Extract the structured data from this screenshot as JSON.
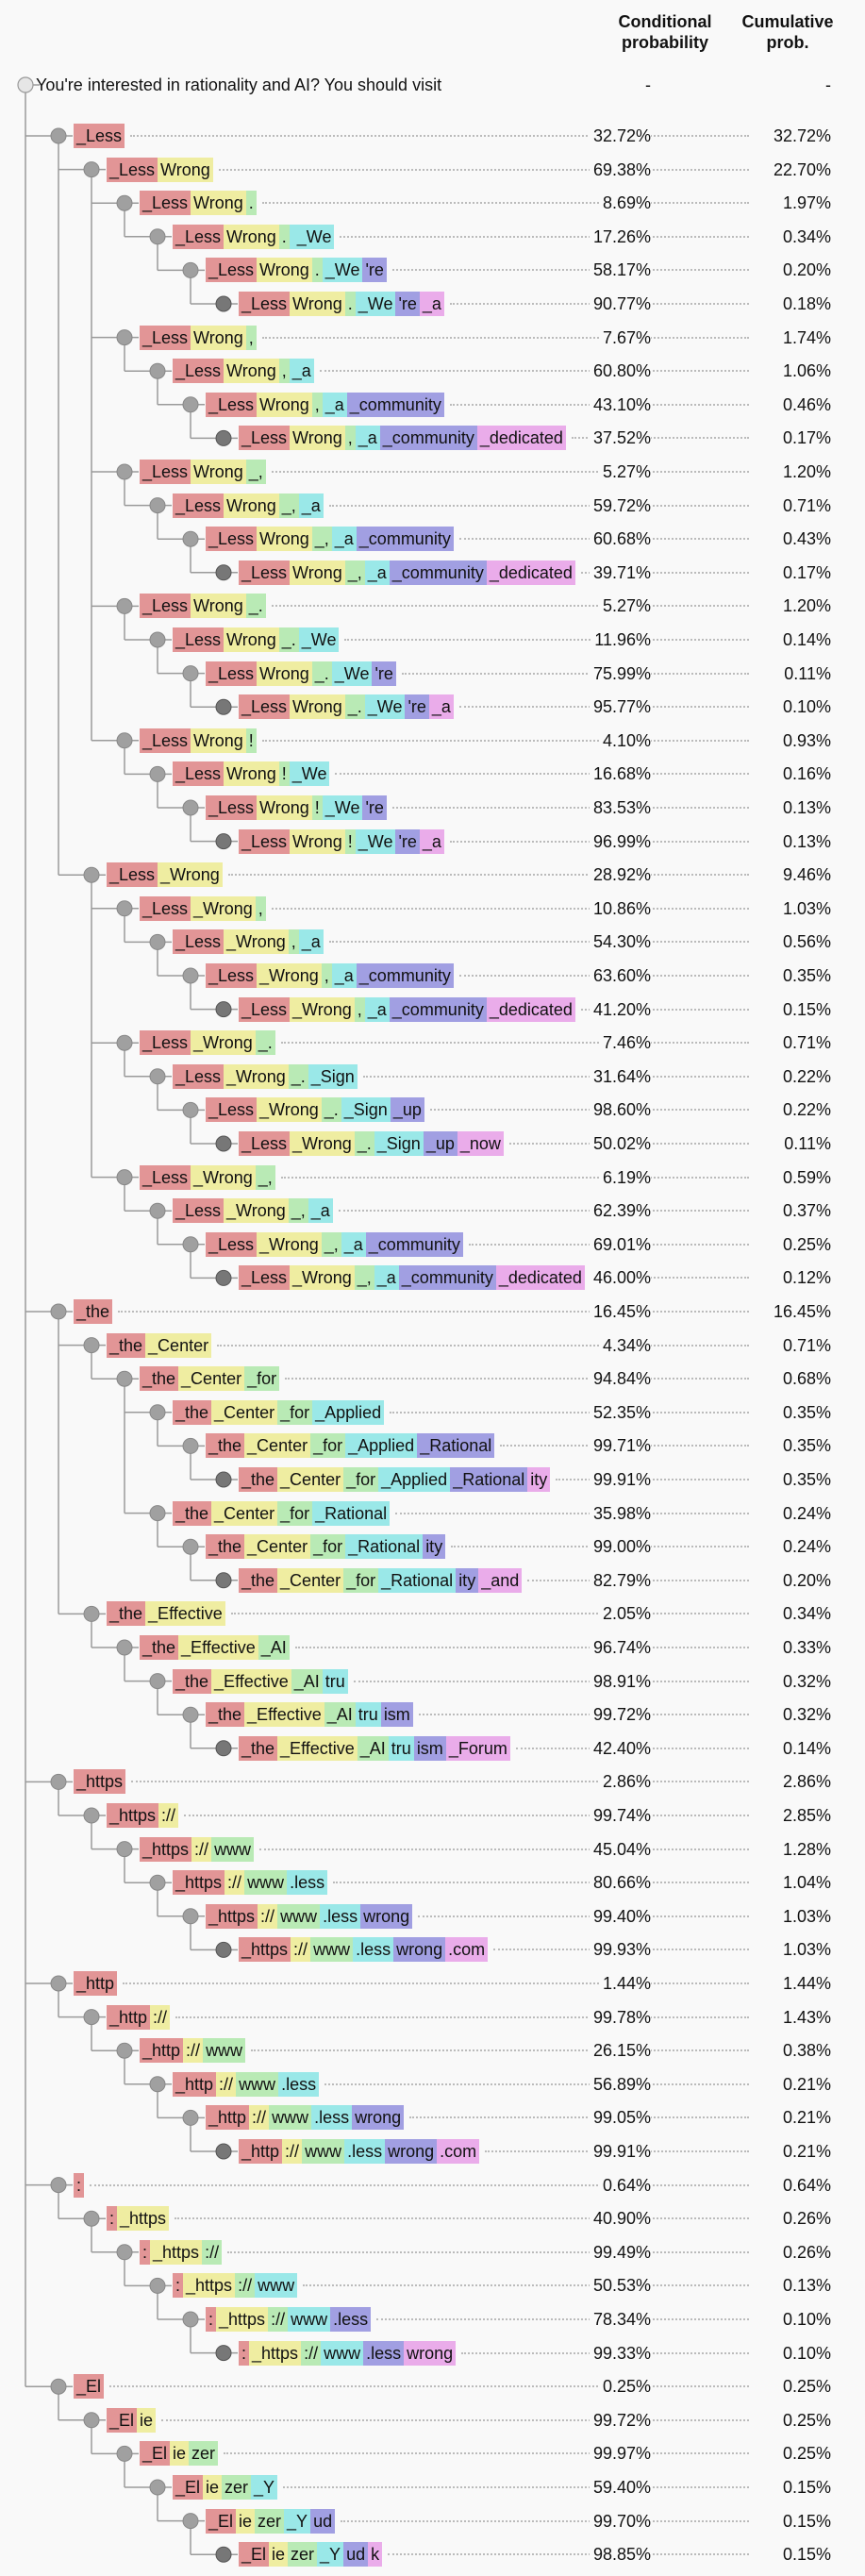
{
  "header": {
    "conditional_label": "Conditional\nprobability",
    "cumulative_label": "Cumulative\nprob."
  },
  "colors": [
    "#e29596",
    "#efeda1",
    "#b9eab5",
    "#9ae8e8",
    "#a19fe2",
    "#eaacea"
  ],
  "root": {
    "text": "You're interested in rationality and AI? You should visit",
    "cond": "-",
    "cum": "-"
  },
  "rows": [
    {
      "d": 1,
      "t": [
        "_Less"
      ],
      "c": "32.72%",
      "u": "32.72%"
    },
    {
      "d": 2,
      "t": [
        "_Less",
        "Wrong"
      ],
      "c": "69.38%",
      "u": "22.70%"
    },
    {
      "d": 3,
      "t": [
        "_Less",
        "Wrong",
        "."
      ],
      "c": "8.69%",
      "u": "1.97%"
    },
    {
      "d": 4,
      "t": [
        "_Less",
        "Wrong",
        ".",
        " _We"
      ],
      "c": "17.26%",
      "u": "0.34%"
    },
    {
      "d": 5,
      "t": [
        "_Less",
        "Wrong",
        ".",
        "_We",
        "'re"
      ],
      "c": "58.17%",
      "u": "0.20%"
    },
    {
      "d": 6,
      "t": [
        "_Less",
        "Wrong",
        ".",
        "_We",
        "'re",
        "_a"
      ],
      "c": "90.77%",
      "u": "0.18%"
    },
    {
      "d": 3,
      "t": [
        "_Less",
        "Wrong",
        ","
      ],
      "c": "7.67%",
      "u": "1.74%"
    },
    {
      "d": 4,
      "t": [
        "_Less",
        "Wrong",
        ",",
        "_a"
      ],
      "c": "60.80%",
      "u": "1.06%"
    },
    {
      "d": 5,
      "t": [
        "_Less",
        "Wrong",
        ",",
        "_a",
        "_community"
      ],
      "c": "43.10%",
      "u": "0.46%"
    },
    {
      "d": 6,
      "t": [
        "_Less",
        "Wrong",
        ",",
        "_a",
        "_community",
        "_dedicated"
      ],
      "c": "37.52%",
      "u": "0.17%"
    },
    {
      "d": 3,
      "t": [
        "_Less",
        "Wrong",
        "_,"
      ],
      "c": "5.27%",
      "u": "1.20%"
    },
    {
      "d": 4,
      "t": [
        "_Less",
        "Wrong",
        "_,",
        "_a"
      ],
      "c": "59.72%",
      "u": "0.71%"
    },
    {
      "d": 5,
      "t": [
        "_Less",
        "Wrong",
        "_,",
        "_a",
        "_community"
      ],
      "c": "60.68%",
      "u": "0.43%"
    },
    {
      "d": 6,
      "t": [
        "_Less",
        "Wrong",
        "_,",
        "_a",
        "_community",
        "_dedicated"
      ],
      "c": "39.71%",
      "u": "0.17%"
    },
    {
      "d": 3,
      "t": [
        "_Less",
        "Wrong",
        "_."
      ],
      "c": "5.27%",
      "u": "1.20%"
    },
    {
      "d": 4,
      "t": [
        "_Less",
        "Wrong",
        "_.",
        "_We"
      ],
      "c": "11.96%",
      "u": "0.14%"
    },
    {
      "d": 5,
      "t": [
        "_Less",
        "Wrong",
        "_.",
        "_We",
        "'re"
      ],
      "c": "75.99%",
      "u": "0.11%"
    },
    {
      "d": 6,
      "t": [
        "_Less",
        "Wrong",
        "_.",
        "_We",
        "'re",
        "_a"
      ],
      "c": "95.77%",
      "u": "0.10%"
    },
    {
      "d": 3,
      "t": [
        "_Less",
        "Wrong",
        "!"
      ],
      "c": "4.10%",
      "u": "0.93%"
    },
    {
      "d": 4,
      "t": [
        "_Less",
        "Wrong",
        "!",
        "_We"
      ],
      "c": "16.68%",
      "u": "0.16%"
    },
    {
      "d": 5,
      "t": [
        "_Less",
        "Wrong",
        "!",
        "_We",
        "'re"
      ],
      "c": "83.53%",
      "u": "0.13%"
    },
    {
      "d": 6,
      "t": [
        "_Less",
        "Wrong",
        "!",
        "_We",
        "'re",
        "_a"
      ],
      "c": "96.99%",
      "u": "0.13%"
    },
    {
      "d": 2,
      "t": [
        "_Less",
        "_Wrong"
      ],
      "c": "28.92%",
      "u": "9.46%"
    },
    {
      "d": 3,
      "t": [
        "_Less",
        "_Wrong",
        ","
      ],
      "c": "10.86%",
      "u": "1.03%"
    },
    {
      "d": 4,
      "t": [
        "_Less",
        "_Wrong",
        ",",
        "_a"
      ],
      "c": "54.30%",
      "u": "0.56%"
    },
    {
      "d": 5,
      "t": [
        "_Less",
        "_Wrong",
        ",",
        "_a",
        "_community"
      ],
      "c": "63.60%",
      "u": "0.35%"
    },
    {
      "d": 6,
      "t": [
        "_Less",
        "_Wrong",
        ",",
        "_a",
        "_community",
        "_dedicated"
      ],
      "c": "41.20%",
      "u": "0.15%"
    },
    {
      "d": 3,
      "t": [
        "_Less",
        "_Wrong",
        "_."
      ],
      "c": "7.46%",
      "u": "0.71%"
    },
    {
      "d": 4,
      "t": [
        "_Less",
        "_Wrong",
        "_.",
        "_Sign"
      ],
      "c": "31.64%",
      "u": "0.22%"
    },
    {
      "d": 5,
      "t": [
        "_Less",
        "_Wrong",
        "_.",
        "_Sign",
        "_up"
      ],
      "c": "98.60%",
      "u": "0.22%"
    },
    {
      "d": 6,
      "t": [
        "_Less",
        "_Wrong",
        "_.",
        "_Sign",
        "_up",
        "_now"
      ],
      "c": "50.02%",
      "u": "0.11%"
    },
    {
      "d": 3,
      "t": [
        "_Less",
        "_Wrong",
        "_,"
      ],
      "c": "6.19%",
      "u": "0.59%"
    },
    {
      "d": 4,
      "t": [
        "_Less",
        "_Wrong",
        "_,",
        "_a"
      ],
      "c": "62.39%",
      "u": "0.37%"
    },
    {
      "d": 5,
      "t": [
        "_Less",
        "_Wrong",
        "_,",
        "_a",
        "_community"
      ],
      "c": "69.01%",
      "u": "0.25%"
    },
    {
      "d": 6,
      "t": [
        "_Less",
        "_Wrong",
        "_,",
        "_a",
        "_community",
        "_dedicated"
      ],
      "c": "46.00%",
      "u": "0.12%"
    },
    {
      "d": 1,
      "t": [
        "_the"
      ],
      "c": "16.45%",
      "u": "16.45%"
    },
    {
      "d": 2,
      "t": [
        "_the",
        "_Center"
      ],
      "c": "4.34%",
      "u": "0.71%"
    },
    {
      "d": 3,
      "t": [
        "_the",
        "_Center",
        "_for"
      ],
      "c": "94.84%",
      "u": "0.68%"
    },
    {
      "d": 4,
      "t": [
        "_the",
        "_Center",
        "_for",
        "_Applied"
      ],
      "c": "52.35%",
      "u": "0.35%"
    },
    {
      "d": 5,
      "t": [
        "_the",
        "_Center",
        "_for",
        "_Applied",
        "_Rational"
      ],
      "c": "99.71%",
      "u": "0.35%"
    },
    {
      "d": 6,
      "t": [
        "_the",
        "_Center",
        "_for",
        "_Applied",
        "_Rational",
        "ity"
      ],
      "c": "99.91%",
      "u": "0.35%"
    },
    {
      "d": 4,
      "t": [
        "_the",
        "_Center",
        "_for",
        "_Rational"
      ],
      "c": "35.98%",
      "u": "0.24%"
    },
    {
      "d": 5,
      "t": [
        "_the",
        "_Center",
        "_for",
        "_Rational",
        "ity"
      ],
      "c": "99.00%",
      "u": "0.24%"
    },
    {
      "d": 6,
      "t": [
        "_the",
        "_Center",
        "_for",
        "_Rational",
        "ity",
        "_and"
      ],
      "c": "82.79%",
      "u": "0.20%"
    },
    {
      "d": 2,
      "t": [
        "_the",
        "_Effective"
      ],
      "c": "2.05%",
      "u": "0.34%"
    },
    {
      "d": 3,
      "t": [
        "_the",
        "_Effective",
        "_AI"
      ],
      "c": "96.74%",
      "u": "0.33%"
    },
    {
      "d": 4,
      "t": [
        "_the",
        "_Effective",
        "_AI",
        "tru"
      ],
      "c": "98.91%",
      "u": "0.32%"
    },
    {
      "d": 5,
      "t": [
        "_the",
        "_Effective",
        "_AI",
        "tru",
        "ism"
      ],
      "c": "99.72%",
      "u": "0.32%"
    },
    {
      "d": 6,
      "t": [
        "_the",
        "_Effective",
        "_AI",
        "tru",
        "ism",
        "_Forum"
      ],
      "c": "42.40%",
      "u": "0.14%"
    },
    {
      "d": 1,
      "t": [
        "_https"
      ],
      "c": "2.86%",
      "u": "2.86%"
    },
    {
      "d": 2,
      "t": [
        "_https",
        "://"
      ],
      "c": "99.74%",
      "u": "2.85%"
    },
    {
      "d": 3,
      "t": [
        "_https",
        "://",
        "www"
      ],
      "c": "45.04%",
      "u": "1.28%"
    },
    {
      "d": 4,
      "t": [
        "_https",
        "://",
        "www",
        ".less"
      ],
      "c": "80.66%",
      "u": "1.04%"
    },
    {
      "d": 5,
      "t": [
        "_https",
        "://",
        "www",
        ".less",
        "wrong"
      ],
      "c": "99.40%",
      "u": "1.03%"
    },
    {
      "d": 6,
      "t": [
        "_https",
        "://",
        "www",
        ".less",
        "wrong",
        ".com"
      ],
      "c": "99.93%",
      "u": "1.03%"
    },
    {
      "d": 1,
      "t": [
        "_http"
      ],
      "c": "1.44%",
      "u": "1.44%"
    },
    {
      "d": 2,
      "t": [
        "_http",
        "://"
      ],
      "c": "99.78%",
      "u": "1.43%"
    },
    {
      "d": 3,
      "t": [
        "_http",
        "://",
        "www"
      ],
      "c": "26.15%",
      "u": "0.38%"
    },
    {
      "d": 4,
      "t": [
        "_http",
        "://",
        "www",
        ".less"
      ],
      "c": "56.89%",
      "u": "0.21%"
    },
    {
      "d": 5,
      "t": [
        "_http",
        "://",
        "www",
        ".less",
        "wrong"
      ],
      "c": "99.05%",
      "u": "0.21%"
    },
    {
      "d": 6,
      "t": [
        "_http",
        "://",
        "www",
        ".less",
        "wrong",
        ".com"
      ],
      "c": "99.91%",
      "u": "0.21%"
    },
    {
      "d": 1,
      "t": [
        ":"
      ],
      "c": "0.64%",
      "u": "0.64%"
    },
    {
      "d": 2,
      "t": [
        ":",
        "_https"
      ],
      "c": "40.90%",
      "u": "0.26%"
    },
    {
      "d": 3,
      "t": [
        ":",
        "_https",
        "://"
      ],
      "c": "99.49%",
      "u": "0.26%"
    },
    {
      "d": 4,
      "t": [
        ":",
        "_https",
        "://",
        "www"
      ],
      "c": "50.53%",
      "u": "0.13%"
    },
    {
      "d": 5,
      "t": [
        ":",
        "_https",
        "://",
        "www",
        ".less"
      ],
      "c": "78.34%",
      "u": "0.10%"
    },
    {
      "d": 6,
      "t": [
        ":",
        "_https",
        "://",
        "www",
        ".less",
        "wrong"
      ],
      "c": "99.33%",
      "u": "0.10%"
    },
    {
      "d": 1,
      "t": [
        "_El"
      ],
      "c": "0.25%",
      "u": "0.25%"
    },
    {
      "d": 2,
      "t": [
        "_El",
        "ie"
      ],
      "c": "99.72%",
      "u": "0.25%"
    },
    {
      "d": 3,
      "t": [
        "_El",
        "ie",
        "zer"
      ],
      "c": "99.97%",
      "u": "0.25%"
    },
    {
      "d": 4,
      "t": [
        "_El",
        "ie",
        "zer",
        "_Y"
      ],
      "c": "59.40%",
      "u": "0.15%"
    },
    {
      "d": 5,
      "t": [
        "_El",
        "ie",
        "zer",
        "_Y",
        "ud"
      ],
      "c": "99.70%",
      "u": "0.15%"
    },
    {
      "d": 6,
      "t": [
        "_El",
        "ie",
        "zer",
        "_Y",
        "ud",
        "k"
      ],
      "c": "98.85%",
      "u": "0.15%"
    }
  ]
}
